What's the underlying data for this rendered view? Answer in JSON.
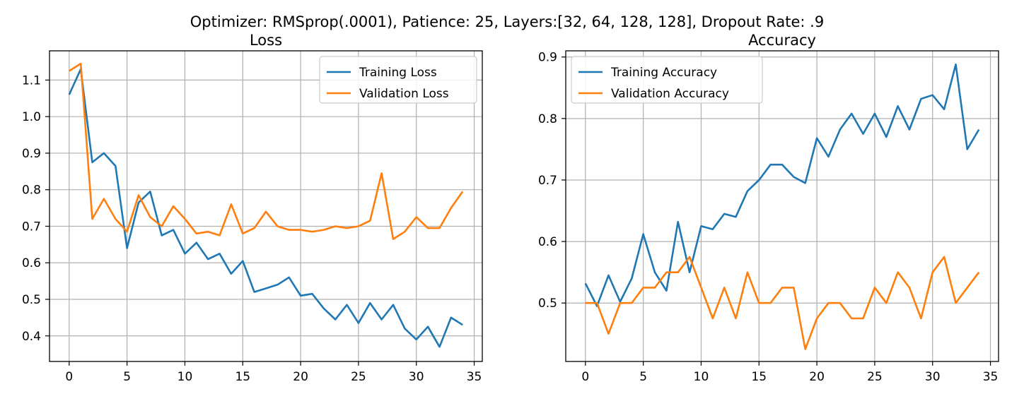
{
  "suptitle": "Optimizer: RMSprop(.0001), Patience: 25, Layers:[32, 64, 128, 128], Dropout Rate: .9",
  "colors": {
    "training": "#1f77b4",
    "validation": "#ff7f0e",
    "grid": "#b0b0b0"
  },
  "chart_data": [
    {
      "type": "line",
      "title": "Loss",
      "xlabel": "",
      "ylabel": "",
      "xlim": [
        -1.7,
        35.7
      ],
      "ylim": [
        0.33,
        1.18
      ],
      "xticks": [
        0,
        5,
        10,
        15,
        20,
        25,
        30,
        35
      ],
      "yticks": [
        0.4,
        0.5,
        0.6,
        0.7,
        0.8,
        0.9,
        1.0,
        1.1
      ],
      "ytick_labels": [
        "0.4",
        "0.5",
        "0.6",
        "0.7",
        "0.8",
        "0.9",
        "1.0",
        "1.1"
      ],
      "grid": true,
      "legend_position": "upper right",
      "x": [
        0,
        1,
        2,
        3,
        4,
        5,
        6,
        7,
        8,
        9,
        10,
        11,
        12,
        13,
        14,
        15,
        16,
        17,
        18,
        19,
        20,
        21,
        22,
        23,
        24,
        25,
        26,
        27,
        28,
        29,
        30,
        31,
        32,
        33,
        34
      ],
      "series": [
        {
          "name": "Training Loss",
          "color": "#1f77b4",
          "values": [
            1.06,
            1.13,
            0.875,
            0.9,
            0.865,
            0.64,
            0.765,
            0.795,
            0.675,
            0.69,
            0.625,
            0.655,
            0.61,
            0.625,
            0.57,
            0.605,
            0.52,
            0.53,
            0.54,
            0.56,
            0.51,
            0.515,
            0.475,
            0.445,
            0.485,
            0.435,
            0.49,
            0.445,
            0.485,
            0.42,
            0.39,
            0.425,
            0.37,
            0.45,
            0.43
          ]
        },
        {
          "name": "Validation Loss",
          "color": "#ff7f0e",
          "values": [
            1.125,
            1.145,
            0.72,
            0.775,
            0.72,
            0.685,
            0.785,
            0.725,
            0.7,
            0.755,
            0.72,
            0.68,
            0.685,
            0.675,
            0.76,
            0.68,
            0.695,
            0.74,
            0.7,
            0.69,
            0.69,
            0.685,
            0.69,
            0.7,
            0.695,
            0.7,
            0.715,
            0.845,
            0.665,
            0.685,
            0.725,
            0.695,
            0.695,
            0.75,
            0.795
          ]
        }
      ]
    },
    {
      "type": "line",
      "title": "Accuracy",
      "xlabel": "",
      "ylabel": "",
      "xlim": [
        -1.7,
        35.7
      ],
      "ylim": [
        0.405,
        0.91
      ],
      "xticks": [
        0,
        5,
        10,
        15,
        20,
        25,
        30,
        35
      ],
      "yticks": [
        0.5,
        0.6,
        0.7,
        0.8,
        0.9
      ],
      "ytick_labels": [
        "0.5",
        "0.6",
        "0.7",
        "0.8",
        "0.9"
      ],
      "grid": true,
      "legend_position": "upper left",
      "x": [
        0,
        1,
        2,
        3,
        4,
        5,
        6,
        7,
        8,
        9,
        10,
        11,
        12,
        13,
        14,
        15,
        16,
        17,
        18,
        19,
        20,
        21,
        22,
        23,
        24,
        25,
        26,
        27,
        28,
        29,
        30,
        31,
        32,
        33,
        34
      ],
      "series": [
        {
          "name": "Training Accuracy",
          "color": "#1f77b4",
          "values": [
            0.532,
            0.495,
            0.545,
            0.502,
            0.54,
            0.612,
            0.55,
            0.52,
            0.632,
            0.55,
            0.625,
            0.62,
            0.645,
            0.64,
            0.682,
            0.7,
            0.725,
            0.725,
            0.705,
            0.695,
            0.768,
            0.738,
            0.782,
            0.808,
            0.775,
            0.808,
            0.77,
            0.82,
            0.782,
            0.832,
            0.838,
            0.815,
            0.888,
            0.75,
            0.782
          ]
        },
        {
          "name": "Validation Accuracy",
          "color": "#ff7f0e",
          "values": [
            0.5,
            0.5,
            0.45,
            0.5,
            0.5,
            0.525,
            0.525,
            0.55,
            0.55,
            0.575,
            0.525,
            0.475,
            0.525,
            0.475,
            0.55,
            0.5,
            0.5,
            0.525,
            0.525,
            0.425,
            0.475,
            0.5,
            0.5,
            0.475,
            0.475,
            0.525,
            0.5,
            0.55,
            0.525,
            0.475,
            0.55,
            0.575,
            0.5,
            0.525,
            0.55
          ]
        }
      ]
    }
  ]
}
